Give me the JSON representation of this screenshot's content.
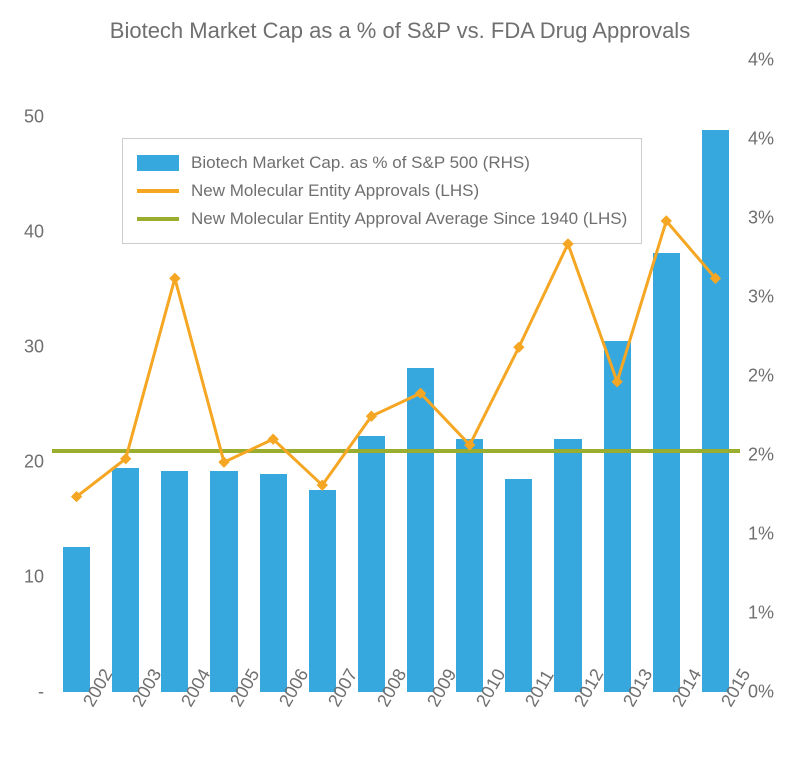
{
  "chart": {
    "type": "bar+line",
    "title": "Biotech Market Cap as a % of S&P vs. FDA Drug Approvals",
    "title_fontsize": 22,
    "title_color": "#6f6f6f",
    "background_color": "#ffffff",
    "plot_border": "none",
    "label_fontsize": 18,
    "label_color": "#6f6f6f",
    "legend": {
      "border_color": "#cccccc",
      "background_color": "#ffffff",
      "fontsize": 17,
      "text_color": "#6f6f6f",
      "items": [
        {
          "swatch_type": "box",
          "color": "#36a8dd",
          "label": "Biotech Market Cap. as % of S&P 500 (RHS)"
        },
        {
          "swatch_type": "line",
          "color": "#f5a623",
          "label": "New Molecular Entity Approvals (LHS)"
        },
        {
          "swatch_type": "line",
          "color": "#9aad2f",
          "label": "New Molecular Entity Approval Average Since 1940 (LHS)"
        }
      ]
    },
    "categories": [
      "2002",
      "2003",
      "2004",
      "2005",
      "2006",
      "2007",
      "2008",
      "2009",
      "2010",
      "2011",
      "2012",
      "2013",
      "2014",
      "2015"
    ],
    "left_axis": {
      "lim": [
        0,
        55
      ],
      "ticks": [
        0,
        10,
        20,
        30,
        40,
        50
      ],
      "tick_labels": [
        "-",
        "10",
        "20",
        "30",
        "40",
        "50"
      ]
    },
    "right_axis": {
      "lim": [
        0,
        4
      ],
      "ticks": [
        0,
        0.5,
        1,
        1.5,
        2,
        2.5,
        3,
        3.5,
        4
      ],
      "tick_labels": [
        "0%",
        "1%",
        "1%",
        "2%",
        "2%",
        "3%",
        "3%",
        "4%",
        "4%"
      ]
    },
    "bars": {
      "axis": "right",
      "color": "#36a8dd",
      "bar_width": 0.55,
      "values": [
        0.92,
        1.42,
        1.4,
        1.4,
        1.38,
        1.28,
        1.62,
        2.05,
        1.6,
        1.35,
        1.6,
        2.22,
        2.78,
        3.56
      ]
    },
    "line": {
      "axis": "left",
      "color": "#f5a623",
      "stroke_width": 3,
      "marker": "diamond",
      "marker_size": 8,
      "values": [
        17,
        20.3,
        36,
        20,
        22,
        18,
        24,
        26,
        21.5,
        30,
        39,
        27,
        41,
        36
      ]
    },
    "hline": {
      "axis": "left",
      "color": "#9aad2f",
      "stroke_width": 4,
      "value": 21
    },
    "x_label_rotation_deg": -60
  }
}
